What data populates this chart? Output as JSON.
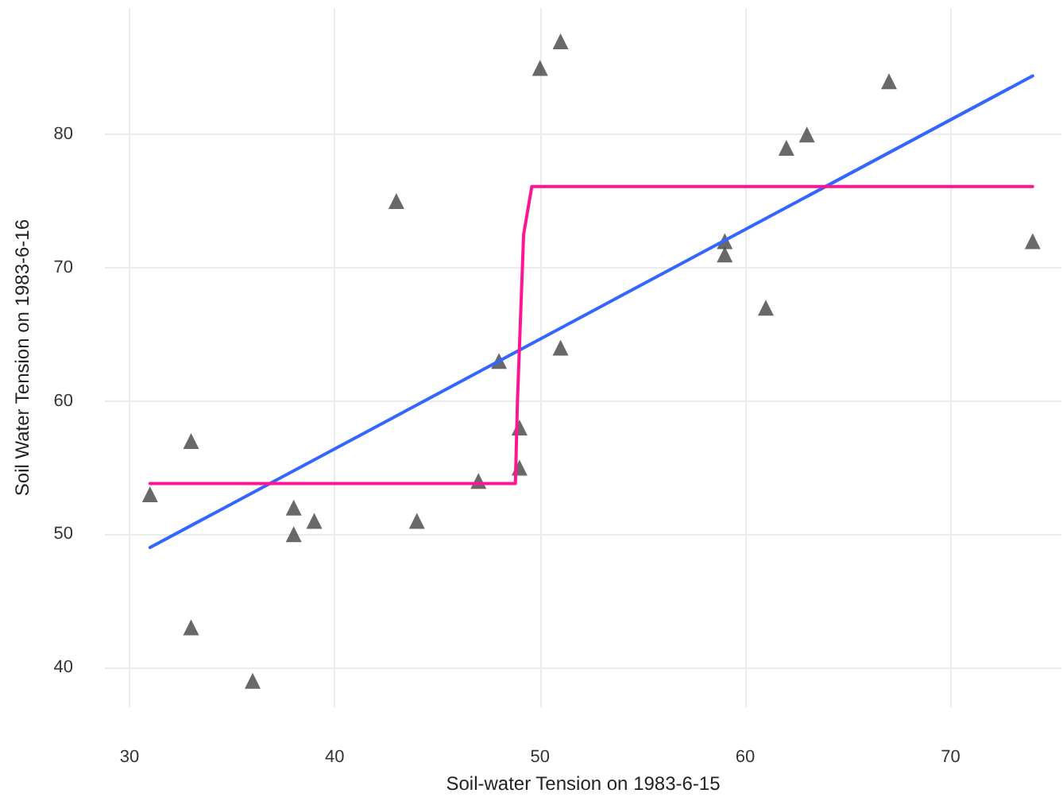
{
  "chart_data": {
    "type": "scatter",
    "xlabel": "Soil-water Tension on 1983-6-15",
    "ylabel": "Soil Water Tension on 1983-6-16",
    "xlim": [
      28.8,
      75.4
    ],
    "ylim": [
      37,
      89.5
    ],
    "xticks": [
      30,
      40,
      50,
      60,
      70
    ],
    "yticks": [
      40,
      50,
      60,
      70,
      80
    ],
    "grid": true,
    "marker": "triangle",
    "series": [
      {
        "color": "#444444",
        "x": [
          31,
          33,
          33,
          36,
          38,
          38,
          39,
          43,
          44,
          47,
          48,
          49,
          49,
          50,
          51,
          51,
          59,
          59,
          61,
          62,
          63,
          67,
          74
        ],
        "values": [
          53,
          57,
          43,
          39,
          52,
          50,
          51,
          75,
          51,
          54,
          63,
          58,
          55,
          85,
          87,
          64,
          72,
          71,
          67,
          79,
          80,
          84,
          72
        ]
      },
      {
        "type": "line",
        "color": "#3366ff",
        "marker": "none",
        "line_style": "solid",
        "x": [
          31,
          74
        ],
        "values": [
          49,
          84.4
        ]
      },
      {
        "type": "line",
        "color": "#ff1493",
        "marker": "none",
        "line_style": "solid",
        "x": [
          31,
          48.8,
          48.9,
          49.2,
          49.6,
          74
        ],
        "values": [
          53.8,
          53.8,
          60,
          72.5,
          76.1,
          76.1
        ]
      }
    ]
  }
}
